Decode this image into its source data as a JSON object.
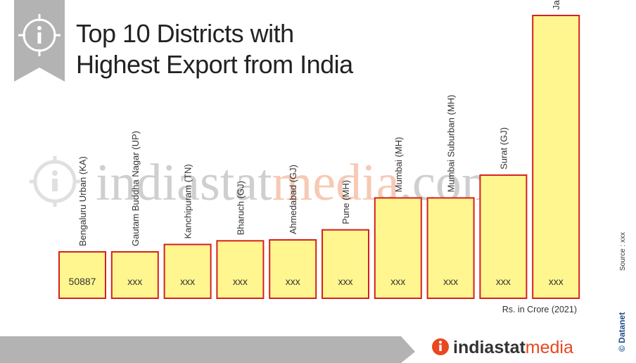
{
  "title_line1": "Top 10 Districts with",
  "title_line2": "Highest Export from India",
  "watermark": {
    "prefix": "indiastat",
    "suffix": "media",
    "tld": ".com"
  },
  "unit_note": "Rs. in Crore (2021)",
  "source_note": "Source : xxx",
  "credit": "© Datanet",
  "footer_brand": {
    "prefix": "indiastat",
    "suffix": "media"
  },
  "colors": {
    "bar_fill": "#fff68f",
    "bar_stroke": "#d6201f",
    "banner": "#b3b3b3",
    "footer": "#b3b3b3",
    "accent": "#e8471f",
    "brand_blue": "#1f4e8c"
  },
  "icons": [
    "info-icon",
    "watermark-info-icon",
    "footer-info-icon"
  ],
  "chart_data": {
    "type": "bar",
    "categories": [
      "Bengaluru Urban (KA)",
      "Gautam Buddha Nagar (UP)",
      "Kanchipuram (TN)",
      "Bharuch (GJ)",
      "Ahmedabad (GJ)",
      "Pune (MH)",
      "Mumbai (MH)",
      "Mumbai Suburban (MH)",
      "Surat (GJ)",
      "Jamnagar (GJ)"
    ],
    "values": [
      50887,
      50887,
      59000,
      63000,
      64000,
      75000,
      110000,
      110000,
      135000,
      310000
    ],
    "labels": [
      "50887",
      "xxx",
      "xxx",
      "xxx",
      "xxx",
      "xxx",
      "xxx",
      "xxx",
      "xxx",
      "xxx"
    ],
    "ylabel": "Rs. in Crore (2021)",
    "ylim": [
      0,
      310000
    ],
    "grid": false,
    "axes_visible": false
  }
}
